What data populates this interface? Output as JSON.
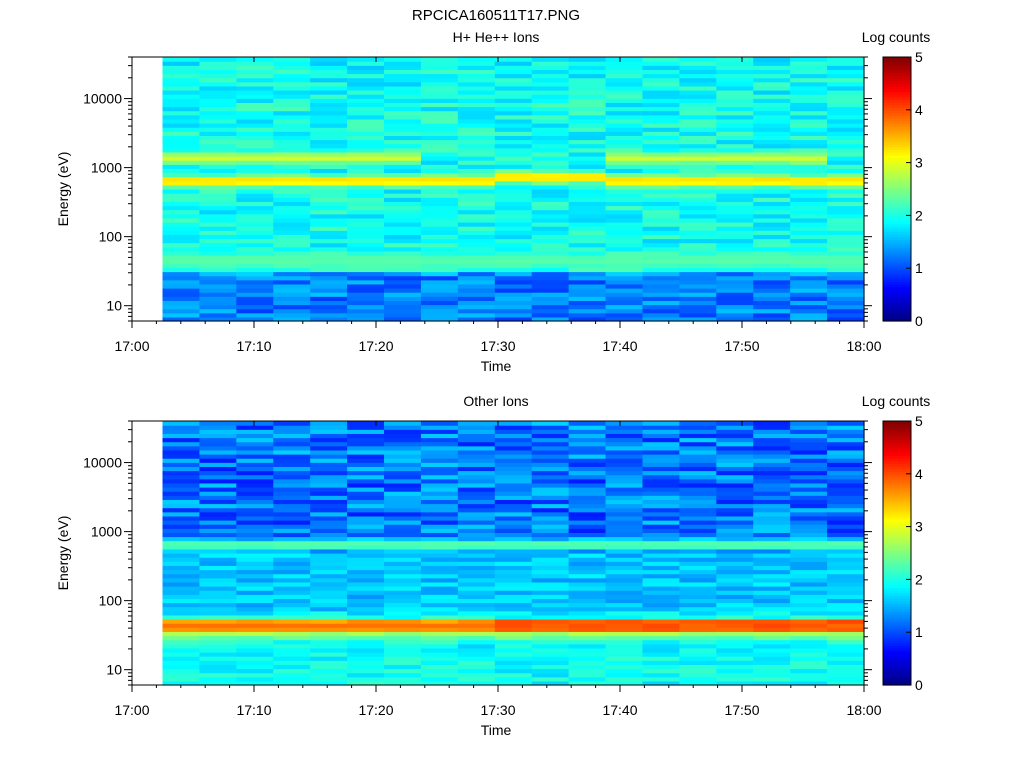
{
  "figure_title": "RPCICA160511T17.PNG",
  "colors": {
    "colormap": "jet",
    "background": "#ffffff",
    "axis": "#000000"
  },
  "chart_data": [
    {
      "type": "heatmap",
      "title": "H+ He++ Ions",
      "xlabel": "Time",
      "ylabel": "Energy (eV)",
      "x_ticks": [
        "17:00",
        "17:10",
        "17:20",
        "17:30",
        "17:40",
        "17:50",
        "18:00"
      ],
      "xlim": [
        "17:00",
        "18:00"
      ],
      "data_start": "17:02.5",
      "data_end": "18:00",
      "num_time_bins": 19,
      "y_scale": "log",
      "ylim": [
        6,
        40000
      ],
      "y_ticks": [
        "10",
        "100",
        "1000",
        "10000"
      ],
      "colorbar": {
        "label": "Log counts",
        "range": [
          0,
          5
        ],
        "ticks": [
          "0",
          "1",
          "2",
          "3",
          "4",
          "5"
        ]
      },
      "background_level": 1.95,
      "bands": [
        {
          "energy_eV": 650,
          "level": 3.4,
          "note": "proton peak (shifts to ~750 eV near 17:35)"
        },
        {
          "energy_eV": 1400,
          "level": 2.9,
          "note": "alpha peak, absent 17:25-17:37"
        },
        {
          "energy_eV": 45,
          "level": 2.3,
          "note": "weak low-energy band"
        }
      ],
      "low_energy_level": 1.25
    },
    {
      "type": "heatmap",
      "title": "Other Ions",
      "xlabel": "Time",
      "ylabel": "Energy (eV)",
      "x_ticks": [
        "17:00",
        "17:10",
        "17:20",
        "17:30",
        "17:40",
        "17:50",
        "18:00"
      ],
      "xlim": [
        "17:00",
        "18:00"
      ],
      "data_start": "17:02.5",
      "data_end": "18:00",
      "num_time_bins": 19,
      "y_scale": "log",
      "ylim": [
        6,
        40000
      ],
      "y_ticks": [
        "10",
        "100",
        "1000",
        "10000"
      ],
      "colorbar": {
        "label": "Log counts",
        "range": [
          0,
          5
        ],
        "ticks": [
          "0",
          "1",
          "2",
          "3",
          "4",
          "5"
        ]
      },
      "background_level": 1.2,
      "bands": [
        {
          "energy_eV": 650,
          "level": 2.4,
          "note": "moderate band"
        },
        {
          "energy_eV": 42,
          "level": 3.9,
          "note": "strong low-energy band"
        }
      ],
      "low_energy_level": 1.9
    }
  ]
}
